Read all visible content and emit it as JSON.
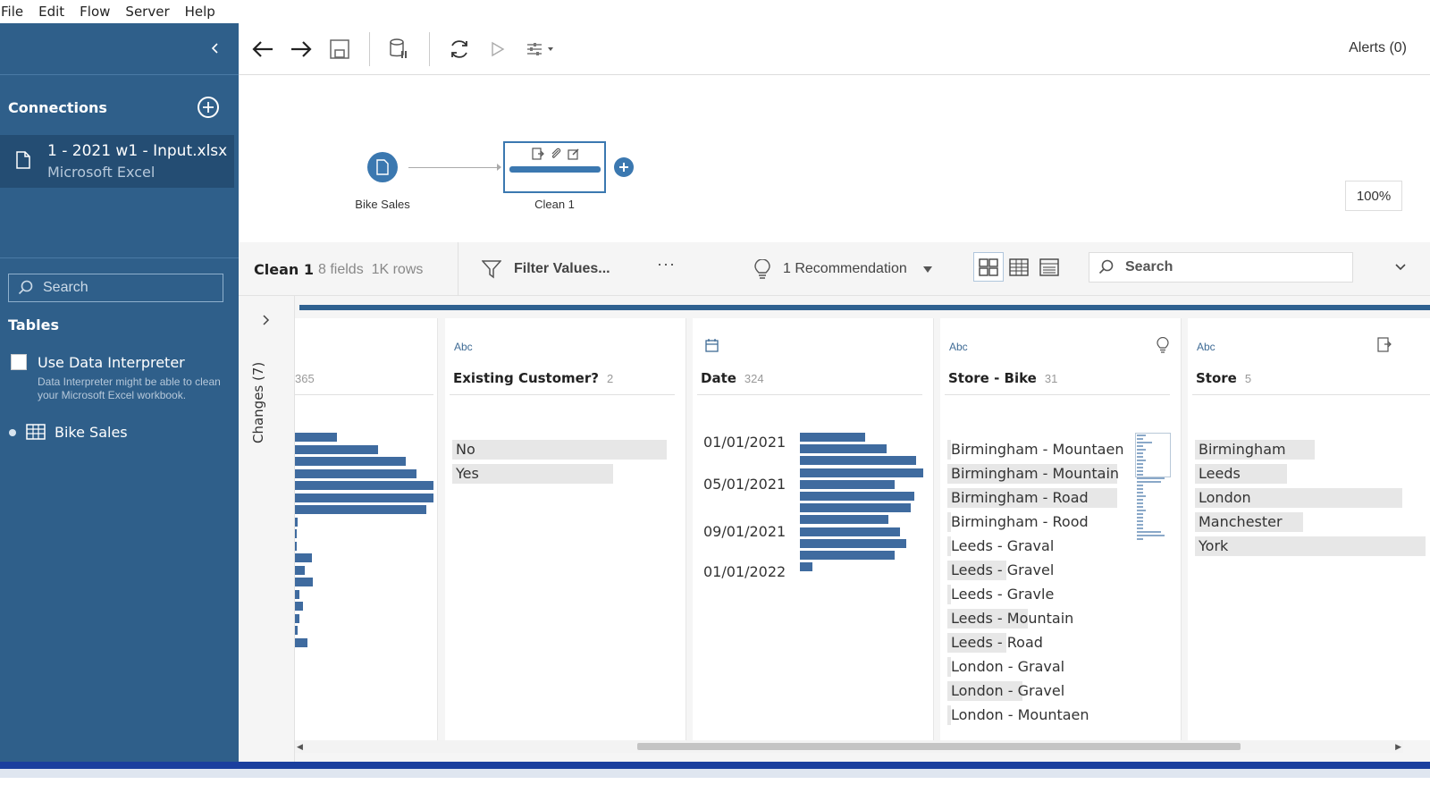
{
  "menu": [
    "File",
    "Edit",
    "Flow",
    "Server",
    "Help"
  ],
  "sidebar": {
    "connections_label": "Connections",
    "connection": {
      "name": "1 - 2021 w1 - Input.xlsx",
      "type": "Microsoft Excel"
    },
    "search_placeholder": "Search",
    "tables_label": "Tables",
    "interpreter_label": "Use Data Interpreter",
    "interpreter_desc": "Data Interpreter might be able to clean your Microsoft Excel workbook.",
    "table_name": "Bike Sales"
  },
  "toolbar": {
    "alerts": "Alerts (0)"
  },
  "flow": {
    "input_label": "Bike Sales",
    "clean_label": "Clean 1",
    "zoom": "100%"
  },
  "profile_bar": {
    "step_name": "Clean 1",
    "step_meta": "8 fields  1K rows",
    "filter_label": "Filter Values...",
    "more": "···",
    "recommendation": "1 Recommendation",
    "search_placeholder": "Search"
  },
  "changes_label": "Changes (7)",
  "cards": [
    {
      "type": "",
      "title": "",
      "count": "365",
      "histogram": [
        0.3,
        0.6,
        0.8,
        0.88,
        1.0,
        1.0,
        0.95,
        0.02,
        0.01,
        0.01,
        0.12,
        0.07,
        0.13,
        0.03,
        0.06,
        0.03,
        0.02,
        0.09
      ]
    },
    {
      "type": "Abc",
      "title": "Existing Customer?",
      "count": "2",
      "values": [
        {
          "label": "No",
          "fraction": 1.0
        },
        {
          "label": "Yes",
          "fraction": 0.75
        }
      ]
    },
    {
      "type": "calendar-icon",
      "title": "Date",
      "count": "324",
      "date_labels": [
        "01/01/2021",
        "05/01/2021",
        "09/01/2021",
        "01/01/2022"
      ],
      "histogram": [
        0.53,
        0.7,
        0.94,
        1.0,
        0.77,
        0.93,
        0.9,
        0.72,
        0.81,
        0.86,
        0.77,
        0.1
      ]
    },
    {
      "type": "Abc",
      "title": "Store - Bike",
      "count": "31",
      "values": [
        {
          "label": "Birmingham - Mountaen",
          "fraction": 0.02
        },
        {
          "label": "Birmingham - Mountain",
          "fraction": 0.95
        },
        {
          "label": "Birmingham - Road",
          "fraction": 0.95
        },
        {
          "label": "Birmingham - Rood",
          "fraction": 0.02
        },
        {
          "label": "Leeds - Graval",
          "fraction": 0.02
        },
        {
          "label": "Leeds - Gravel",
          "fraction": 0.33
        },
        {
          "label": "Leeds - Gravle",
          "fraction": 0.02
        },
        {
          "label": "Leeds - Mountain",
          "fraction": 0.45
        },
        {
          "label": "Leeds - Road",
          "fraction": 0.33
        },
        {
          "label": "London - Graval",
          "fraction": 0.02
        },
        {
          "label": "London - Gravel",
          "fraction": 0.42
        },
        {
          "label": "London - Mountaen",
          "fraction": 0.02
        }
      ]
    },
    {
      "type": "Abc",
      "title": "Store",
      "count": "5",
      "values": [
        {
          "label": "Birmingham",
          "fraction": 0.52
        },
        {
          "label": "Leeds",
          "fraction": 0.4
        },
        {
          "label": "London",
          "fraction": 0.9
        },
        {
          "label": "Manchester",
          "fraction": 0.47
        },
        {
          "label": "York",
          "fraction": 1.0
        }
      ]
    }
  ],
  "colors": {
    "sidebar": "#2f5f8a",
    "accent": "#3b78b0",
    "bar": "#3f6b9f"
  }
}
